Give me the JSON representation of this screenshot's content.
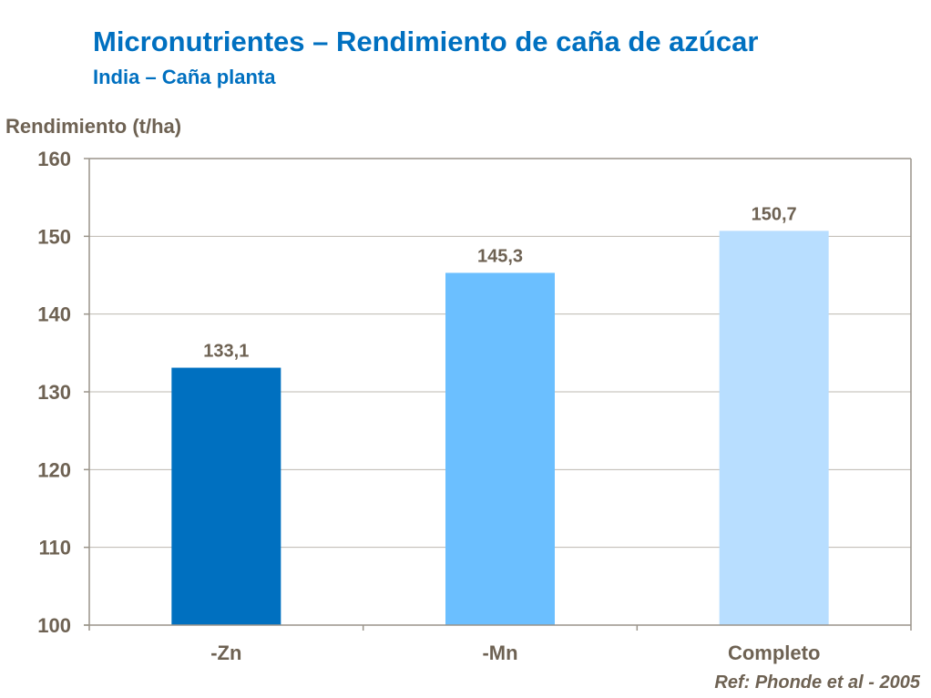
{
  "title": "Micronutrientes – Rendimiento de caña de azúcar",
  "subtitle": "India – Caña planta",
  "reference": "Ref: Phonde et al - 2005",
  "chart_data": {
    "type": "bar",
    "ylabel": "Rendimiento (t/ha)",
    "xlabel": "",
    "categories": [
      "-Zn",
      "-Mn",
      "Completo"
    ],
    "values": [
      133.1,
      145.3,
      150.7
    ],
    "data_labels": [
      "133,1",
      "145,3",
      "150,7"
    ],
    "colors": [
      "#0070C0",
      "#6BBFFF",
      "#B8DEFF"
    ],
    "ylim": [
      100,
      160
    ],
    "yticks": [
      100,
      110,
      120,
      130,
      140,
      150,
      160
    ],
    "grid": true
  }
}
